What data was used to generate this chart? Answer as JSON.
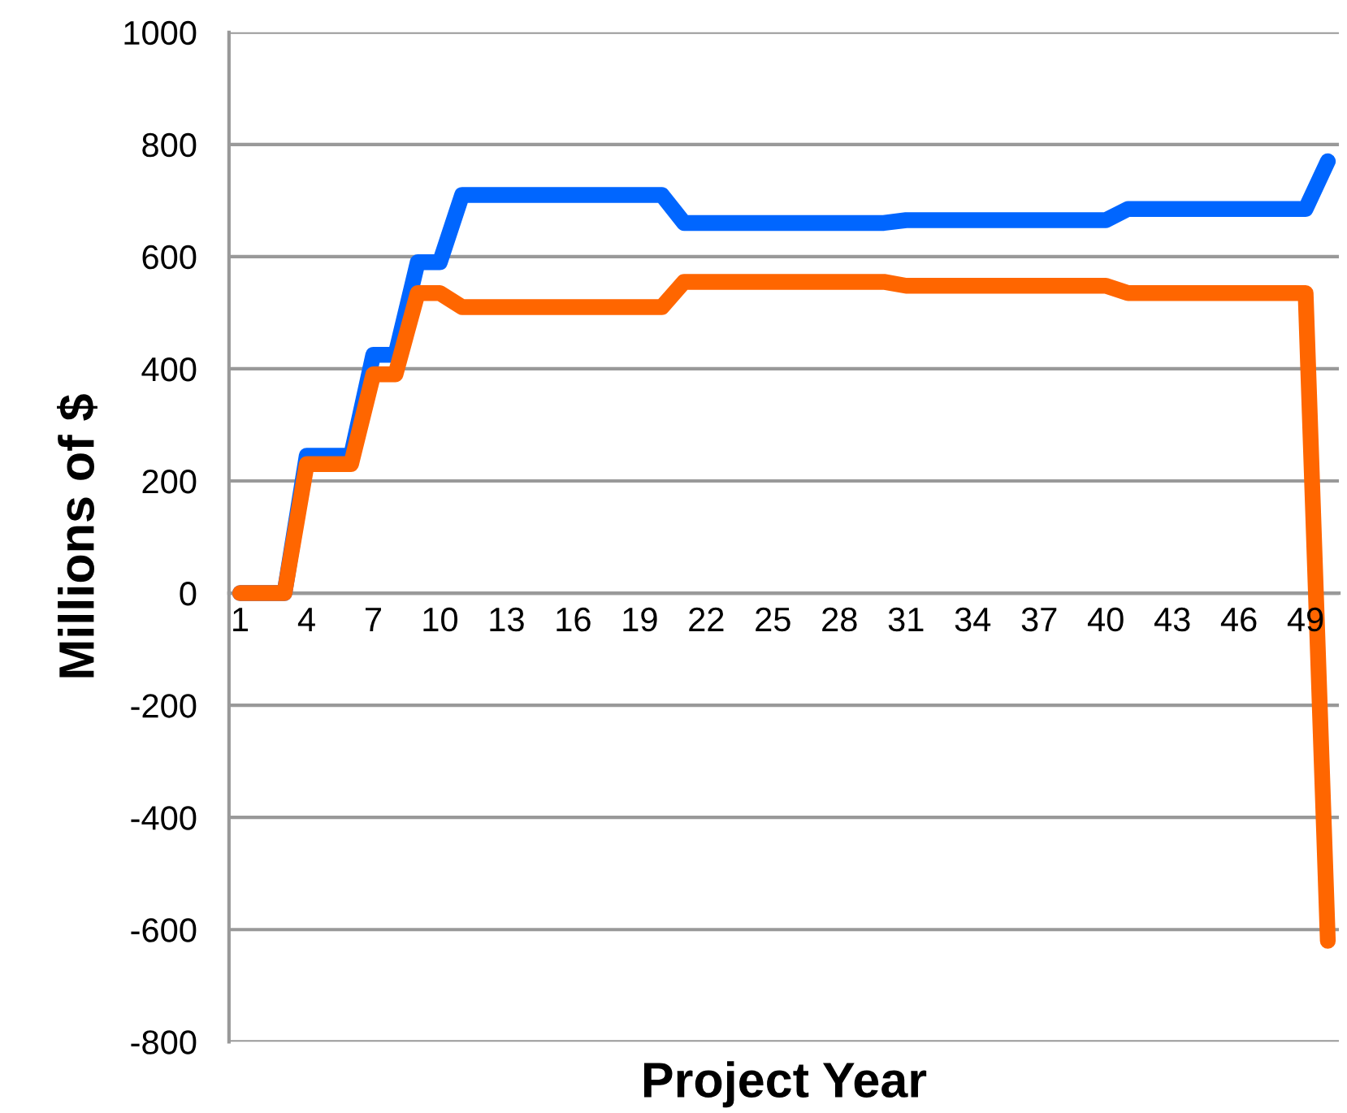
{
  "chart_data": {
    "type": "line",
    "xlabel": "Project Year",
    "ylabel": "Millions of $",
    "categories": [
      "1",
      null,
      null,
      "4",
      null,
      null,
      "7",
      null,
      null,
      "10",
      null,
      null,
      "13",
      null,
      null,
      "16",
      null,
      null,
      "19",
      null,
      null,
      "22",
      null,
      null,
      "25",
      null,
      null,
      "28",
      null,
      null,
      "31",
      null,
      null,
      "34",
      null,
      null,
      "37",
      null,
      null,
      "40",
      null,
      null,
      "43",
      null,
      null,
      "46",
      null,
      null,
      "49",
      null
    ],
    "series": [
      {
        "color": "#0066ff",
        "values": [
          0,
          0,
          0,
          245,
          245,
          245,
          425,
          425,
          590,
          590,
          710,
          710,
          710,
          710,
          710,
          710,
          710,
          710,
          710,
          710,
          660,
          660,
          660,
          660,
          660,
          660,
          660,
          660,
          660,
          660,
          665,
          665,
          665,
          665,
          665,
          665,
          665,
          665,
          665,
          665,
          685,
          685,
          685,
          685,
          685,
          685,
          685,
          685,
          685,
          770
        ]
      },
      {
        "color": "#ff6600",
        "values": [
          0,
          0,
          0,
          230,
          230,
          230,
          390,
          390,
          535,
          535,
          510,
          510,
          510,
          510,
          510,
          510,
          510,
          510,
          510,
          510,
          555,
          555,
          555,
          555,
          555,
          555,
          555,
          555,
          555,
          555,
          548,
          548,
          548,
          548,
          548,
          548,
          548,
          548,
          548,
          548,
          535,
          535,
          535,
          535,
          535,
          535,
          535,
          535,
          535,
          -620
        ]
      }
    ],
    "ylim": [
      -800,
      1000
    ],
    "yticks": [
      -800,
      -600,
      -400,
      -200,
      0,
      200,
      400,
      600,
      800,
      1000
    ],
    "grid": "y",
    "legend": false
  }
}
